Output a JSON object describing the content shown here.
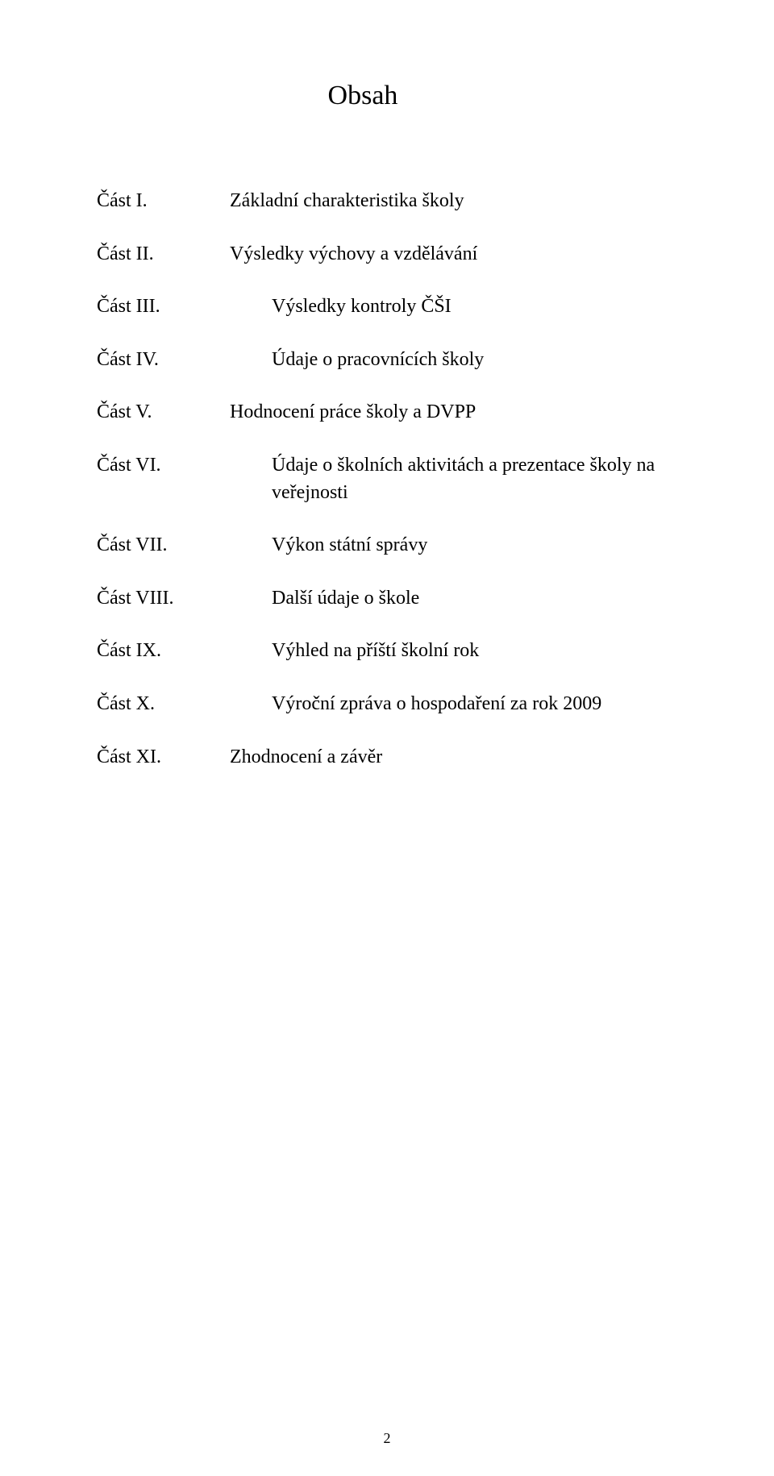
{
  "title": "Obsah",
  "toc": [
    {
      "label": "Část I.",
      "desc": "Základní charakteristika školy",
      "indented": false
    },
    {
      "label": "Část II.",
      "desc": "Výsledky výchovy a vzdělávání",
      "indented": false
    },
    {
      "label": "Část III.",
      "desc": "Výsledky kontroly ČŠI",
      "indented": true
    },
    {
      "label": "Část IV.",
      "desc": "Údaje o pracovnících školy",
      "indented": true
    },
    {
      "label": "Část V.",
      "desc": "Hodnocení práce školy a DVPP",
      "indented": false
    },
    {
      "label": "Část VI.",
      "desc": "Údaje o školních aktivitách a prezentace školy na veřejnosti",
      "indented": true
    },
    {
      "label": "Část VII.",
      "desc": "Výkon státní správy",
      "indented": true
    },
    {
      "label": "Část VIII.",
      "desc": "Další údaje o škole",
      "indented": true
    },
    {
      "label": "Část IX.",
      "desc": "Výhled na příští školní rok",
      "indented": true
    },
    {
      "label": "Část X.",
      "desc": "Výroční zpráva o hospodaření za rok 2009",
      "indented": true
    },
    {
      "label": "Část XI.",
      "desc": "Zhodnocení a závěr",
      "indented": false
    }
  ],
  "page_number": "2",
  "colors": {
    "background": "#ffffff",
    "text": "#000000"
  }
}
